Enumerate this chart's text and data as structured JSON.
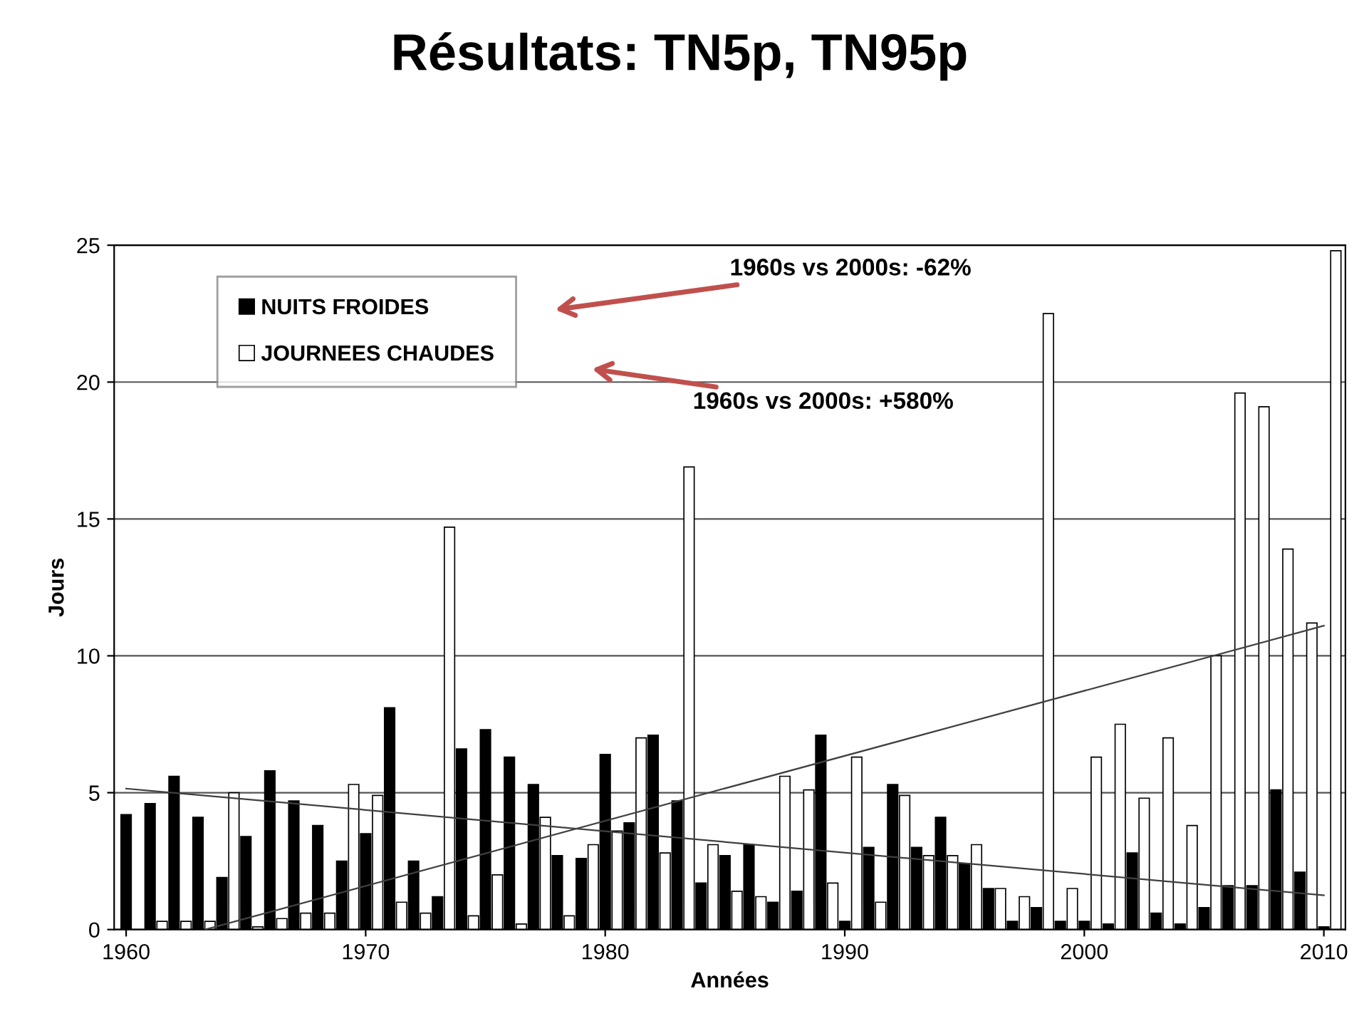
{
  "chart_data": {
    "type": "bar",
    "title": "Résultats: TN5p, TN95p",
    "xlabel": "Années",
    "ylabel": "Jours",
    "x": [
      1960,
      1961,
      1962,
      1963,
      1964,
      1965,
      1966,
      1967,
      1968,
      1969,
      1970,
      1971,
      1972,
      1973,
      1974,
      1975,
      1976,
      1977,
      1978,
      1979,
      1980,
      1981,
      1982,
      1983,
      1984,
      1985,
      1986,
      1987,
      1988,
      1989,
      1990,
      1991,
      1992,
      1993,
      1994,
      1995,
      1996,
      1997,
      1998,
      1999,
      2000,
      2001,
      2002,
      2003,
      2004,
      2005,
      2006,
      2007,
      2008,
      2009,
      2010
    ],
    "xlim": [
      1959.5,
      2010.9
    ],
    "xticks": [
      1960,
      1970,
      1980,
      1990,
      2000,
      2010
    ],
    "ylim": [
      0,
      25
    ],
    "yticks": [
      0,
      5,
      10,
      15,
      20,
      25
    ],
    "grid": "y",
    "legend": "top left",
    "series": [
      {
        "name": "NUITS FROIDES",
        "color": "#000000",
        "values": [
          4.2,
          4.6,
          5.6,
          4.1,
          1.9,
          3.4,
          5.8,
          4.7,
          3.8,
          2.5,
          3.5,
          8.1,
          2.5,
          1.2,
          6.6,
          7.3,
          6.3,
          5.3,
          2.7,
          2.6,
          6.4,
          3.9,
          7.1,
          4.7,
          1.7,
          2.7,
          3.1,
          1.0,
          1.4,
          7.1,
          0.3,
          3.0,
          5.3,
          3.0,
          4.1,
          2.4,
          1.5,
          0.3,
          0.8,
          0.3,
          0.3,
          0.2,
          2.8,
          0.6,
          0.2,
          0.8,
          1.6,
          1.6,
          5.1,
          2.1,
          0.1
        ]
      },
      {
        "name": "JOURNEES CHAUDES",
        "color": "#ffffff",
        "values": [
          null,
          0.3,
          0.3,
          0.3,
          5.0,
          0.1,
          0.4,
          0.6,
          0.6,
          5.3,
          4.9,
          1.0,
          0.6,
          14.7,
          0.5,
          2.0,
          0.2,
          4.1,
          0.5,
          3.1,
          3.6,
          7.0,
          2.8,
          16.9,
          3.1,
          1.4,
          1.2,
          5.6,
          5.1,
          1.7,
          6.3,
          1.0,
          4.9,
          2.7,
          2.7,
          3.1,
          1.5,
          1.2,
          22.5,
          1.5,
          6.3,
          7.5,
          4.8,
          7.0,
          3.8,
          10.0,
          19.6,
          19.1,
          13.9,
          11.2,
          24.8
        ]
      },
      {
        "type": "line",
        "color": "#404040",
        "x": [
          1960,
          2010
        ],
        "values": [
          5.15,
          1.25
        ]
      },
      {
        "type": "line",
        "color": "#404040",
        "x": [
          1963.3,
          2010
        ],
        "values": [
          0,
          11.1
        ]
      }
    ],
    "annotations": [
      "1960s vs 2000s: -62%",
      "1960s vs 2000s: +580%"
    ]
  }
}
